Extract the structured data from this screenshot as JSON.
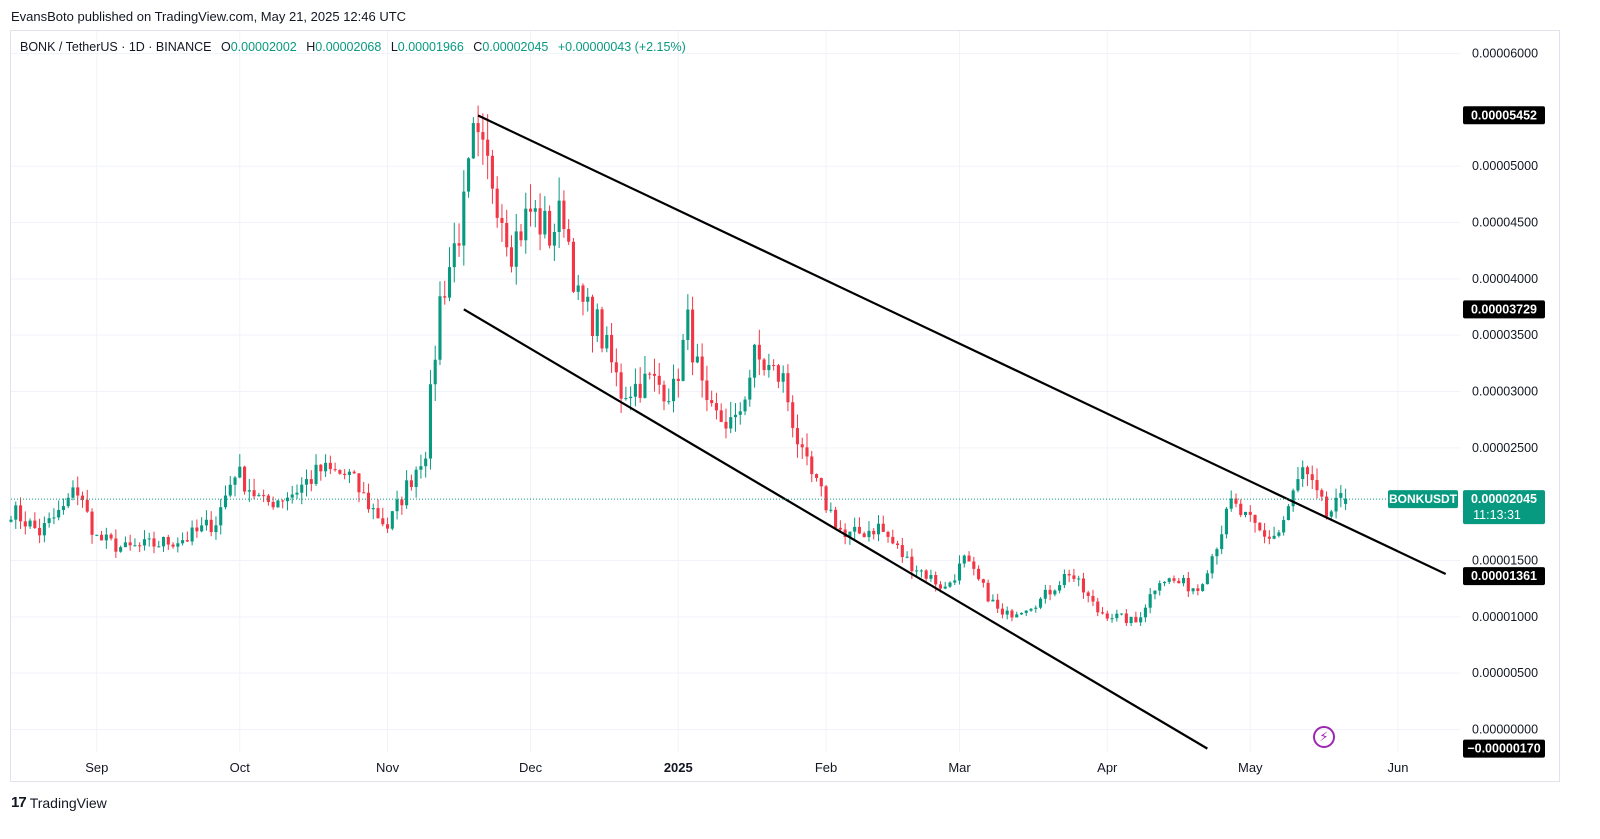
{
  "header": {
    "publisher_line": "EvansBoto published on TradingView.com, May 21, 2025 12:46 UTC"
  },
  "legend": {
    "symbol": "BONK / TetherUS · 1D · BINANCE",
    "open_label": "O",
    "open": "0.00002002",
    "high_label": "H",
    "high": "0.00002068",
    "low_label": "L",
    "low": "0.00001966",
    "close_label": "C",
    "close": "0.00002045",
    "change": "+0.00000043 (+2.15%)"
  },
  "footer": {
    "brand": "TradingView",
    "brand_mark": "17"
  },
  "colors": {
    "up": "#089981",
    "down": "#f23645",
    "trendline": "#000000",
    "price_badge": "#089981",
    "marker_badge": "#000000"
  },
  "chart_data": {
    "type": "candlestick",
    "symbol": "BONKUSDT",
    "x_range": [
      "2024-08-14",
      "2025-06-14"
    ],
    "y_range": [
      -2e-06,
      6.2e-05
    ],
    "y_ticks": [
      {
        "value": 6e-05,
        "label": "0.00006000"
      },
      {
        "value": 5e-05,
        "label": "0.00005000"
      },
      {
        "value": 4.5e-05,
        "label": "0.00004500"
      },
      {
        "value": 4e-05,
        "label": "0.00004000"
      },
      {
        "value": 3.5e-05,
        "label": "0.00003500"
      },
      {
        "value": 3e-05,
        "label": "0.00003000"
      },
      {
        "value": 2.5e-05,
        "label": "0.00002500"
      },
      {
        "value": 1.5e-05,
        "label": "0.00001500"
      },
      {
        "value": 1e-05,
        "label": "0.00001000"
      },
      {
        "value": 5e-06,
        "label": "0.00000500"
      },
      {
        "value": 0.0,
        "label": "0.00000000"
      }
    ],
    "x_ticks": [
      {
        "date": "2024-09-01",
        "label": "Sep"
      },
      {
        "date": "2024-10-01",
        "label": "Oct"
      },
      {
        "date": "2024-11-01",
        "label": "Nov"
      },
      {
        "date": "2024-12-01",
        "label": "Dec"
      },
      {
        "date": "2025-01-01",
        "label": "2025"
      },
      {
        "date": "2025-02-01",
        "label": "Feb"
      },
      {
        "date": "2025-03-01",
        "label": "Mar"
      },
      {
        "date": "2025-04-01",
        "label": "Apr"
      },
      {
        "date": "2025-05-01",
        "label": "May"
      },
      {
        "date": "2025-06-01",
        "label": "Jun"
      }
    ],
    "price_markers": [
      {
        "value": 5.452e-05,
        "label": "0.00005452"
      },
      {
        "value": 3.729e-05,
        "label": "0.00003729"
      },
      {
        "value": 1.361e-05,
        "label": "0.00001361"
      },
      {
        "value": -1.7e-06,
        "label": "−0.00000170"
      }
    ],
    "last_price": {
      "value": 2.045e-05,
      "label": "0.00002045",
      "countdown": "11:13:31",
      "name": "BONKUSDT"
    },
    "trendlines": [
      {
        "from": [
          "2024-11-20",
          5.45e-05
        ],
        "to": [
          "2025-06-11",
          1.38e-05
        ]
      },
      {
        "from": [
          "2024-11-17",
          3.73e-05
        ],
        "to": [
          "2025-04-22",
          -1.7e-06
        ]
      }
    ],
    "close_anchors": [
      [
        "2024-08-14",
        1.95e-05
      ],
      [
        "2024-08-20",
        1.75e-05
      ],
      [
        "2024-08-26",
        2e-05
      ],
      [
        "2024-08-27",
        2.2e-05
      ],
      [
        "2024-09-01",
        1.7e-05
      ],
      [
        "2024-09-07",
        1.6e-05
      ],
      [
        "2024-09-14",
        1.65e-05
      ],
      [
        "2024-09-20",
        1.7e-05
      ],
      [
        "2024-09-26",
        1.85e-05
      ],
      [
        "2024-09-30",
        2.3e-05
      ],
      [
        "2024-10-06",
        2e-05
      ],
      [
        "2024-10-12",
        2.1e-05
      ],
      [
        "2024-10-18",
        2.3e-05
      ],
      [
        "2024-10-24",
        2.25e-05
      ],
      [
        "2024-10-28",
        2e-05
      ],
      [
        "2024-11-01",
        1.8e-05
      ],
      [
        "2024-11-05",
        2.15e-05
      ],
      [
        "2024-11-09",
        2.5e-05
      ],
      [
        "2024-11-12",
        3.8e-05
      ],
      [
        "2024-11-17",
        4.6e-05
      ],
      [
        "2024-11-19",
        5.2e-05
      ],
      [
        "2024-11-23",
        4.9e-05
      ],
      [
        "2024-11-27",
        4.3e-05
      ],
      [
        "2024-12-01",
        4.6e-05
      ],
      [
        "2024-12-05",
        4.4e-05
      ],
      [
        "2024-12-08",
        4.6e-05
      ],
      [
        "2024-12-11",
        3.8e-05
      ],
      [
        "2024-12-15",
        3.6e-05
      ],
      [
        "2024-12-20",
        3e-05
      ],
      [
        "2024-12-26",
        3.1e-05
      ],
      [
        "2024-12-31",
        3e-05
      ],
      [
        "2025-01-03",
        3.6e-05
      ],
      [
        "2025-01-07",
        2.8e-05
      ],
      [
        "2025-01-13",
        2.7e-05
      ],
      [
        "2025-01-17",
        3.3e-05
      ],
      [
        "2025-01-23",
        3.1e-05
      ],
      [
        "2025-01-27",
        2.4e-05
      ],
      [
        "2025-02-01",
        2e-05
      ],
      [
        "2025-02-05",
        1.7e-05
      ],
      [
        "2025-02-12",
        1.8e-05
      ],
      [
        "2025-02-18",
        1.5e-05
      ],
      [
        "2025-02-26",
        1.25e-05
      ],
      [
        "2025-03-02",
        1.5e-05
      ],
      [
        "2025-03-10",
        1e-05
      ],
      [
        "2025-03-18",
        1.15e-05
      ],
      [
        "2025-03-24",
        1.4e-05
      ],
      [
        "2025-03-30",
        1.05e-05
      ],
      [
        "2025-04-07",
        9.5e-06
      ],
      [
        "2025-04-12",
        1.35e-05
      ],
      [
        "2025-04-20",
        1.25e-05
      ],
      [
        "2025-04-23",
        1.55e-05
      ],
      [
        "2025-04-27",
        2e-05
      ],
      [
        "2025-05-04",
        1.7e-05
      ],
      [
        "2025-05-07",
        1.75e-05
      ],
      [
        "2025-05-12",
        2.3e-05
      ],
      [
        "2025-05-17",
        1.9e-05
      ],
      [
        "2025-05-21",
        2.05e-05
      ]
    ]
  }
}
